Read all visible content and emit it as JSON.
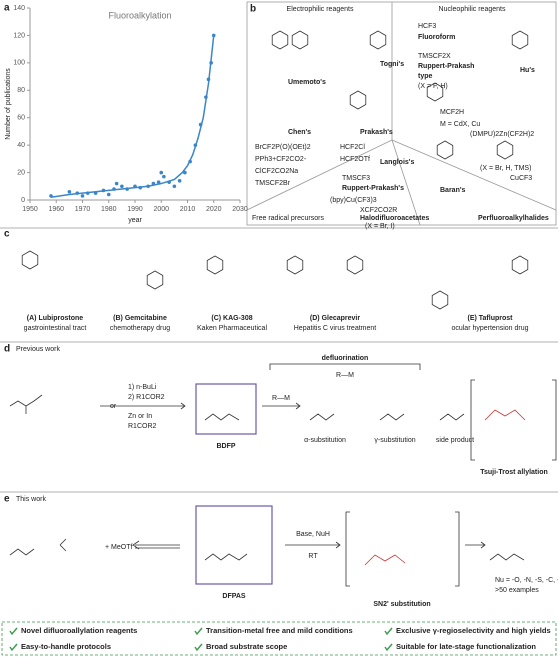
{
  "chart_data": {
    "type": "scatter",
    "title": "Fluoroalkylation",
    "xlabel": "year",
    "ylabel": "Number of publications",
    "panel": "a",
    "xlim": [
      1950,
      2030
    ],
    "xticks": [
      1950,
      1960,
      1970,
      1980,
      1990,
      2000,
      2010,
      2020,
      2030
    ],
    "ylim": [
      0,
      140
    ],
    "yticks": [
      0,
      20,
      40,
      60,
      80,
      100,
      120,
      140
    ],
    "color": "#3a86c8",
    "points": {
      "x": [
        1958,
        1965,
        1968,
        1970,
        1972,
        1975,
        1978,
        1980,
        1982,
        1983,
        1985,
        1987,
        1990,
        1992,
        1995,
        1997,
        1999,
        2000,
        2001,
        2003,
        2005,
        2007,
        2009,
        2011,
        2013,
        2015,
        2017,
        2018,
        2019,
        2020
      ],
      "values": [
        3,
        6,
        5,
        3,
        5,
        5,
        7,
        4,
        8,
        12,
        10,
        8,
        10,
        9,
        10,
        12,
        13,
        20,
        17,
        13,
        10,
        14,
        20,
        28,
        40,
        55,
        75,
        88,
        100,
        120
      ]
    },
    "fit": {
      "x": [
        1958,
        1965,
        1970,
        1975,
        1980,
        1985,
        1990,
        1995,
        2000,
        2005,
        2008,
        2010,
        2012,
        2014,
        2016,
        2018,
        2020
      ],
      "values": [
        2,
        4,
        5,
        6,
        7,
        8,
        9,
        10,
        12,
        15,
        20,
        25,
        33,
        45,
        60,
        85,
        120
      ]
    }
  },
  "panels": {
    "b": {
      "label": "b",
      "electrophilic": "Electrophilic reagents",
      "nucleophilic": "Nucleophilic reagents",
      "reagents": [
        "Umemoto's",
        "Togni's",
        "Chen's",
        "Prakash's",
        "HCF3",
        "Fluoroform",
        "TMSCF2X",
        "Ruppert-Prakash",
        "type",
        "(X = F, H)",
        "Hu's",
        "MCF2H",
        "M = CdX, Cu",
        "(DMPU)2Zn(CF2H)2",
        "(X = Br, H, TMS)",
        "CuCF3",
        "BrCF2P(O)(OEt)2",
        "HCF2Cl",
        "PPh3+CF2CO2-",
        "HCF2OTf",
        "ClCF2CO2Na",
        "TMSCF2Br",
        "Langlois's",
        "TMSCF3",
        "Ruppert-Prakash's",
        "Baran's",
        "(bpy)Cu(CF3)3",
        "XCF2CO2R",
        "Halodifluoroacetates",
        "(X = Br, I)",
        "Free radical precursors",
        "Perfluoroalkylhalides"
      ]
    },
    "c": {
      "label": "c",
      "drugs": [
        [
          "(A) Lubiprostone",
          "gastrointestinal tract"
        ],
        [
          "(B) Gemcitabine",
          "chemotherapy drug"
        ],
        [
          "(C) KAG-308",
          "Kaken Pharmaceutical"
        ],
        [
          "(D) Glecaprevir",
          "Hepatitis C virus treatment"
        ],
        [
          "(E) Tafluprost",
          "ocular hypertension drug"
        ]
      ]
    },
    "d": {
      "label": "d",
      "title": "Previous work",
      "conditions": [
        "1) n-BuLi",
        "2) R1COR2",
        "or",
        "Zn or In",
        "R1COR2"
      ],
      "reagent": "BDFP",
      "defluorination": "defluorination",
      "rm": "R—M",
      "products": [
        "α-substitution",
        "γ-substitution",
        "side product"
      ],
      "tsuji": "Tsuji-Trost allylation"
    },
    "e": {
      "label": "e",
      "title": "This work",
      "meotf": "+ MeOTf",
      "reagent": "DFPAS",
      "conditions": [
        "Base, NuH",
        "RT"
      ],
      "mechanism": "SN2' substitution",
      "scope": "Nu = -O, -N, -S, -C, -Se ...",
      "examples": ">50 examples"
    },
    "highlights": [
      "Novel difluoroallylation reagents",
      "Transition-metal free and mild conditions",
      "Exclusive γ-regioselectivity and high yields",
      "Easy-to-handle protocols",
      "Broad substrate scope",
      "Suitable for late-stage functionalization"
    ]
  }
}
